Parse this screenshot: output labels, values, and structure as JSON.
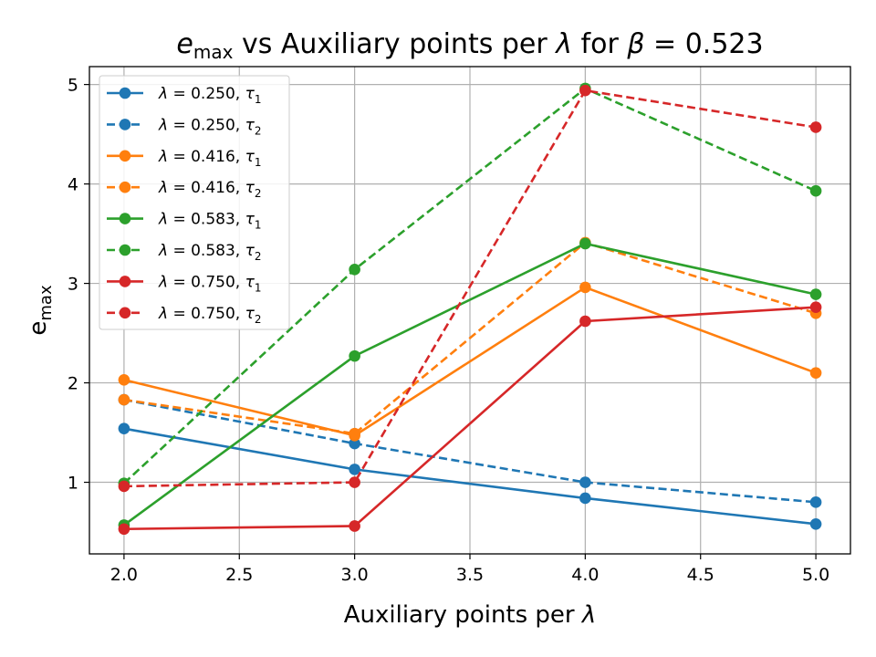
{
  "chart_data": {
    "type": "line",
    "title": "e_max vs Auxiliary points per λ for β = 0.523",
    "title_parts": {
      "main": "e",
      "sub": "max",
      "rest": " vs Auxiliary points per ",
      "lambda": "λ",
      "for": " for ",
      "beta": "β",
      "eq": " = 0.523"
    },
    "xlabel": "Auxiliary points per λ",
    "xlabel_parts": {
      "text": "Auxiliary points per ",
      "lambda": "λ"
    },
    "ylabel": "e_max",
    "ylabel_parts": {
      "main": "e",
      "sub": "max"
    },
    "xlim": [
      1.85,
      5.15
    ],
    "ylim": [
      0.28,
      5.18
    ],
    "xticks": [
      2.0,
      2.5,
      3.0,
      3.5,
      4.0,
      4.5,
      5.0
    ],
    "xtick_labels": [
      "2.0",
      "2.5",
      "3.0",
      "3.5",
      "4.0",
      "4.5",
      "5.0"
    ],
    "yticks": [
      1,
      2,
      3,
      4,
      5
    ],
    "ytick_labels": [
      "1",
      "2",
      "3",
      "4",
      "5"
    ],
    "grid": true,
    "legend_position": "upper-left",
    "x": [
      2.0,
      3.0,
      4.0,
      5.0
    ],
    "series": [
      {
        "name": "λ = 0.250, τ1",
        "lambda": "0.250",
        "tau": "2",
        "tau_index": "1",
        "color": "#1f77b4",
        "dash": "solid",
        "values": [
          1.54,
          1.13,
          0.84,
          0.58
        ]
      },
      {
        "name": "λ = 0.250, τ2",
        "lambda": "0.250",
        "tau_index": "2",
        "color": "#1f77b4",
        "dash": "dashed",
        "values": [
          1.83,
          1.39,
          1.0,
          0.8
        ]
      },
      {
        "name": "λ = 0.416, τ1",
        "lambda": "0.416",
        "tau_index": "1",
        "color": "#ff7f0e",
        "dash": "solid",
        "values": [
          2.03,
          1.47,
          2.96,
          2.1
        ]
      },
      {
        "name": "λ = 0.416, τ2",
        "lambda": "0.416",
        "tau_index": "2",
        "color": "#ff7f0e",
        "dash": "dashed",
        "values": [
          1.83,
          1.49,
          3.41,
          2.7
        ]
      },
      {
        "name": "λ = 0.583, τ1",
        "lambda": "0.583",
        "tau_index": "1",
        "color": "#2ca02c",
        "dash": "solid",
        "values": [
          0.57,
          2.27,
          3.4,
          2.89
        ]
      },
      {
        "name": "λ = 0.583, τ2",
        "lambda": "0.583",
        "tau_index": "2",
        "color": "#2ca02c",
        "dash": "dashed",
        "values": [
          0.99,
          3.14,
          4.96,
          3.93
        ]
      },
      {
        "name": "λ = 0.750, τ1",
        "lambda": "0.750",
        "tau_index": "1",
        "color": "#d62728",
        "dash": "solid",
        "values": [
          0.53,
          0.56,
          2.62,
          2.76
        ]
      },
      {
        "name": "λ = 0.750, τ2",
        "lambda": "0.750",
        "tau_index": "2",
        "color": "#d62728",
        "dash": "dashed",
        "values": [
          0.96,
          1.0,
          4.94,
          4.57
        ]
      }
    ]
  }
}
